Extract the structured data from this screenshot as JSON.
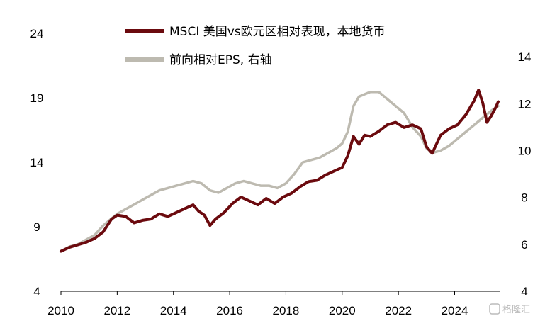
{
  "chart_data": {
    "type": "line",
    "title": "",
    "xlabel": "",
    "ylabel": "",
    "x_ticks": [
      "2010",
      "2012",
      "2014",
      "2016",
      "2018",
      "2020",
      "2022",
      "2024"
    ],
    "xlim": [
      2010,
      2025.6
    ],
    "y_left": {
      "lim": [
        4,
        24
      ],
      "ticks": [
        "4",
        "9",
        "14",
        "19",
        "24"
      ]
    },
    "y_right": {
      "lim": [
        4,
        15
      ],
      "ticks": [
        "4",
        "6",
        "8",
        "10",
        "12",
        "14"
      ]
    },
    "grid": false,
    "legend_position": "top",
    "series": [
      {
        "name": "MSCI 美国vs欧元区相对表现，本地货币",
        "axis": "left",
        "color": "#6b0a0e",
        "x": [
          2010.0,
          2010.3,
          2010.6,
          2010.9,
          2011.2,
          2011.5,
          2011.8,
          2012.0,
          2012.3,
          2012.6,
          2012.9,
          2013.2,
          2013.5,
          2013.8,
          2014.1,
          2014.4,
          2014.7,
          2014.9,
          2015.1,
          2015.3,
          2015.5,
          2015.8,
          2016.1,
          2016.4,
          2016.7,
          2017.0,
          2017.3,
          2017.6,
          2017.9,
          2018.2,
          2018.5,
          2018.8,
          2019.1,
          2019.4,
          2019.7,
          2020.0,
          2020.2,
          2020.4,
          2020.6,
          2020.8,
          2021.0,
          2021.3,
          2021.6,
          2021.9,
          2022.2,
          2022.5,
          2022.8,
          2023.0,
          2023.2,
          2023.5,
          2023.8,
          2024.1,
          2024.4,
          2024.7,
          2024.85,
          2025.0,
          2025.15,
          2025.3,
          2025.45,
          2025.55
        ],
        "values": [
          7.1,
          7.4,
          7.6,
          7.8,
          8.1,
          8.6,
          9.6,
          9.9,
          9.8,
          9.3,
          9.5,
          9.6,
          10.0,
          9.8,
          10.1,
          10.4,
          10.7,
          10.2,
          9.9,
          9.1,
          9.6,
          10.1,
          10.8,
          11.3,
          11.0,
          10.7,
          11.2,
          10.8,
          11.3,
          11.6,
          12.1,
          12.5,
          12.6,
          13.0,
          13.3,
          13.6,
          14.5,
          16.0,
          15.4,
          16.1,
          16.0,
          16.4,
          16.9,
          17.1,
          16.7,
          16.9,
          16.6,
          15.2,
          14.7,
          16.1,
          16.6,
          16.9,
          17.7,
          18.8,
          19.6,
          18.6,
          17.1,
          17.6,
          18.2,
          18.7
        ]
      },
      {
        "name": "前向相对EPS, 右轴",
        "axis": "right",
        "color": "#bdbab0",
        "x": [
          2010.0,
          2010.3,
          2010.6,
          2010.9,
          2011.2,
          2011.5,
          2011.8,
          2012.0,
          2012.3,
          2012.6,
          2012.9,
          2013.2,
          2013.5,
          2013.8,
          2014.1,
          2014.4,
          2014.7,
          2015.0,
          2015.3,
          2015.6,
          2015.9,
          2016.2,
          2016.5,
          2016.8,
          2017.1,
          2017.4,
          2017.7,
          2018.0,
          2018.3,
          2018.6,
          2018.9,
          2019.2,
          2019.5,
          2019.8,
          2020.0,
          2020.2,
          2020.4,
          2020.6,
          2020.8,
          2021.0,
          2021.3,
          2021.6,
          2021.9,
          2022.2,
          2022.5,
          2022.8,
          2023.0,
          2023.2,
          2023.5,
          2023.8,
          2024.1,
          2024.4,
          2024.7,
          2025.0,
          2025.3,
          2025.55
        ],
        "values": [
          5.7,
          5.9,
          6.0,
          6.2,
          6.4,
          6.8,
          7.1,
          7.3,
          7.5,
          7.7,
          7.9,
          8.1,
          8.3,
          8.4,
          8.5,
          8.6,
          8.7,
          8.6,
          8.3,
          8.2,
          8.4,
          8.6,
          8.7,
          8.6,
          8.5,
          8.5,
          8.4,
          8.6,
          9.0,
          9.5,
          9.6,
          9.7,
          9.9,
          10.1,
          10.3,
          10.8,
          11.9,
          12.3,
          12.4,
          12.5,
          12.5,
          12.2,
          11.9,
          11.6,
          11.0,
          10.6,
          10.1,
          9.9,
          10.0,
          10.2,
          10.5,
          10.8,
          11.1,
          11.4,
          11.7,
          11.9
        ]
      }
    ],
    "watermark": "格隆汇"
  }
}
